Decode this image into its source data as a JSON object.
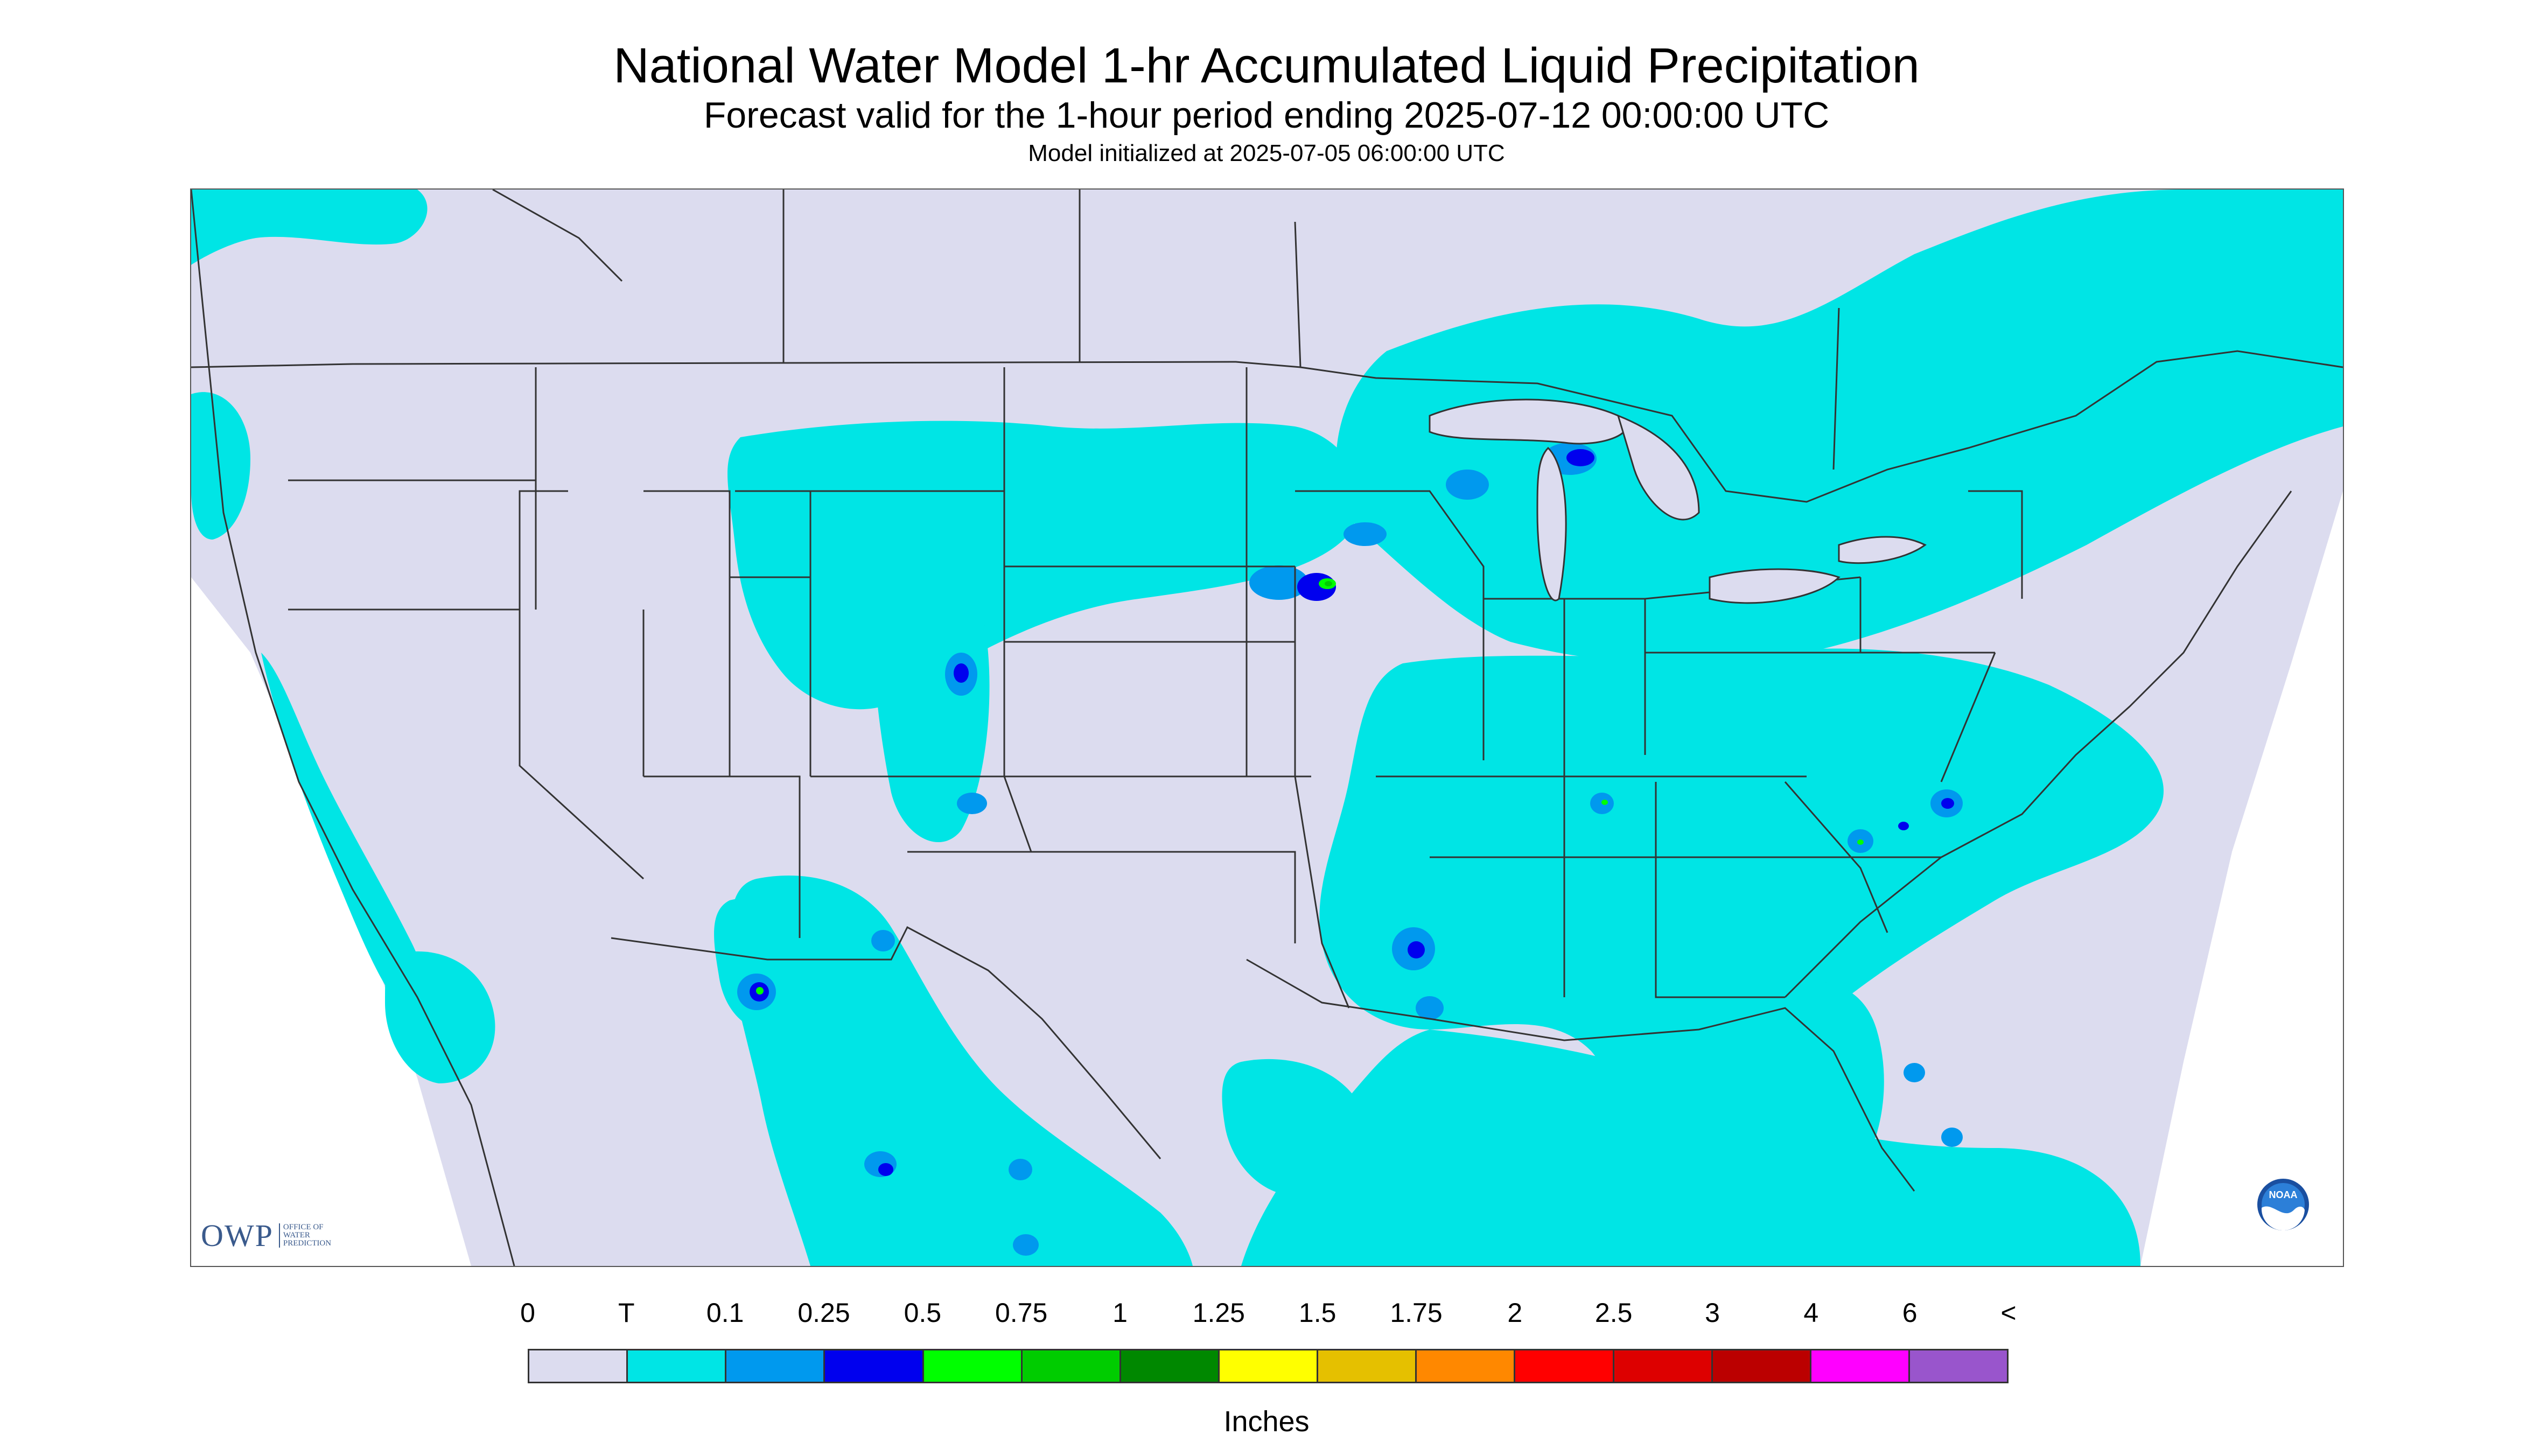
{
  "header": {
    "title": "National Water Model 1-hr Accumulated Liquid Precipitation",
    "subtitle": "Forecast valid for the 1-hour period ending 2025-07-12 00:00:00 UTC",
    "init": "Model initialized at 2025-07-05 06:00:00 UTC"
  },
  "logos": {
    "owp_mark": "OWP",
    "owp_lines": [
      "OFFICE OF",
      "WATER",
      "PREDICTION"
    ],
    "noaa_text": "NOAA"
  },
  "legend": {
    "labels": [
      "0",
      "T",
      "0.1",
      "0.25",
      "0.5",
      "0.75",
      "1",
      "1.25",
      "1.5",
      "1.75",
      "2",
      "2.5",
      "3",
      "4",
      "6",
      "<"
    ],
    "colors": [
      "#dcdcef",
      "#00e5e5",
      "#0099ee",
      "#0000ee",
      "#00ff00",
      "#00cc00",
      "#008800",
      "#ffff00",
      "#e5c000",
      "#ff8800",
      "#ff0000",
      "#dd0000",
      "#bb0000",
      "#ff00ff",
      "#9955cc"
    ],
    "units": "Inches"
  },
  "map_colors": {
    "no_precip": "#dcdcef",
    "outside": "#ffffff",
    "trace": "#00e5e5",
    "light": "#0099ee",
    "moderate": "#0000ee",
    "heavy": "#00ff00",
    "heavier": "#00cc00",
    "borders": "#333333"
  }
}
